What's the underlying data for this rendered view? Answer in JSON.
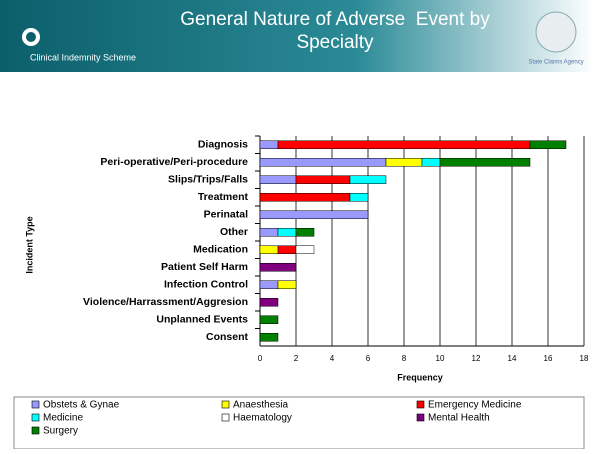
{
  "header": {
    "logo_left": "Clinical Indemnity Scheme",
    "logo_right": "State Claims Agency"
  },
  "chart_data": {
    "type": "stacked_barh",
    "title": "General Nature of Adverse  Event by Specialty",
    "xlabel": "Frequency",
    "ylabel": "Incident Type",
    "categories": [
      "Diagnosis",
      "Peri-operative/Peri-procedure",
      "Slips/Trips/Falls",
      "Treatment",
      "Perinatal",
      "Other",
      "Medication",
      "Patient Self Harm",
      "Infection Control",
      "Violence/Harrassment/Aggresion",
      "Unplanned Events",
      "Consent"
    ],
    "series": [
      {
        "name": "Obstets & Gynae",
        "color": "#9999ff",
        "values": [
          1,
          7,
          2,
          0,
          6,
          1,
          0,
          0,
          1,
          0,
          0,
          0
        ]
      },
      {
        "name": "Anaesthesia",
        "color": "#ffff00",
        "values": [
          0,
          2,
          0,
          0,
          0,
          0,
          1,
          0,
          1,
          0,
          0,
          0
        ]
      },
      {
        "name": "Emergency Medicine",
        "color": "#ff0000",
        "values": [
          14,
          0,
          3,
          5,
          0,
          0,
          1,
          0,
          0,
          0,
          0,
          0
        ]
      },
      {
        "name": "Medicine",
        "color": "#00ffff",
        "values": [
          0,
          1,
          2,
          1,
          0,
          1,
          0,
          0,
          0,
          0,
          0,
          0
        ]
      },
      {
        "name": "Haematology",
        "color": "#ffffff",
        "values": [
          0,
          0,
          0,
          0,
          0,
          0,
          1,
          0,
          0,
          0,
          0,
          0
        ]
      },
      {
        "name": "Mental Health",
        "color": "#800080",
        "values": [
          0,
          0,
          0,
          0,
          0,
          0,
          0,
          2,
          0,
          1,
          0,
          0
        ]
      },
      {
        "name": "Surgery",
        "color": "#008000",
        "values": [
          2,
          5,
          0,
          0,
          0,
          1,
          0,
          0,
          0,
          0,
          1,
          1
        ]
      }
    ],
    "xlim": [
      0,
      18
    ],
    "xticks": [
      0,
      2,
      4,
      6,
      8,
      10,
      12,
      14,
      16,
      18
    ],
    "grid": true,
    "legend": "bottom"
  }
}
